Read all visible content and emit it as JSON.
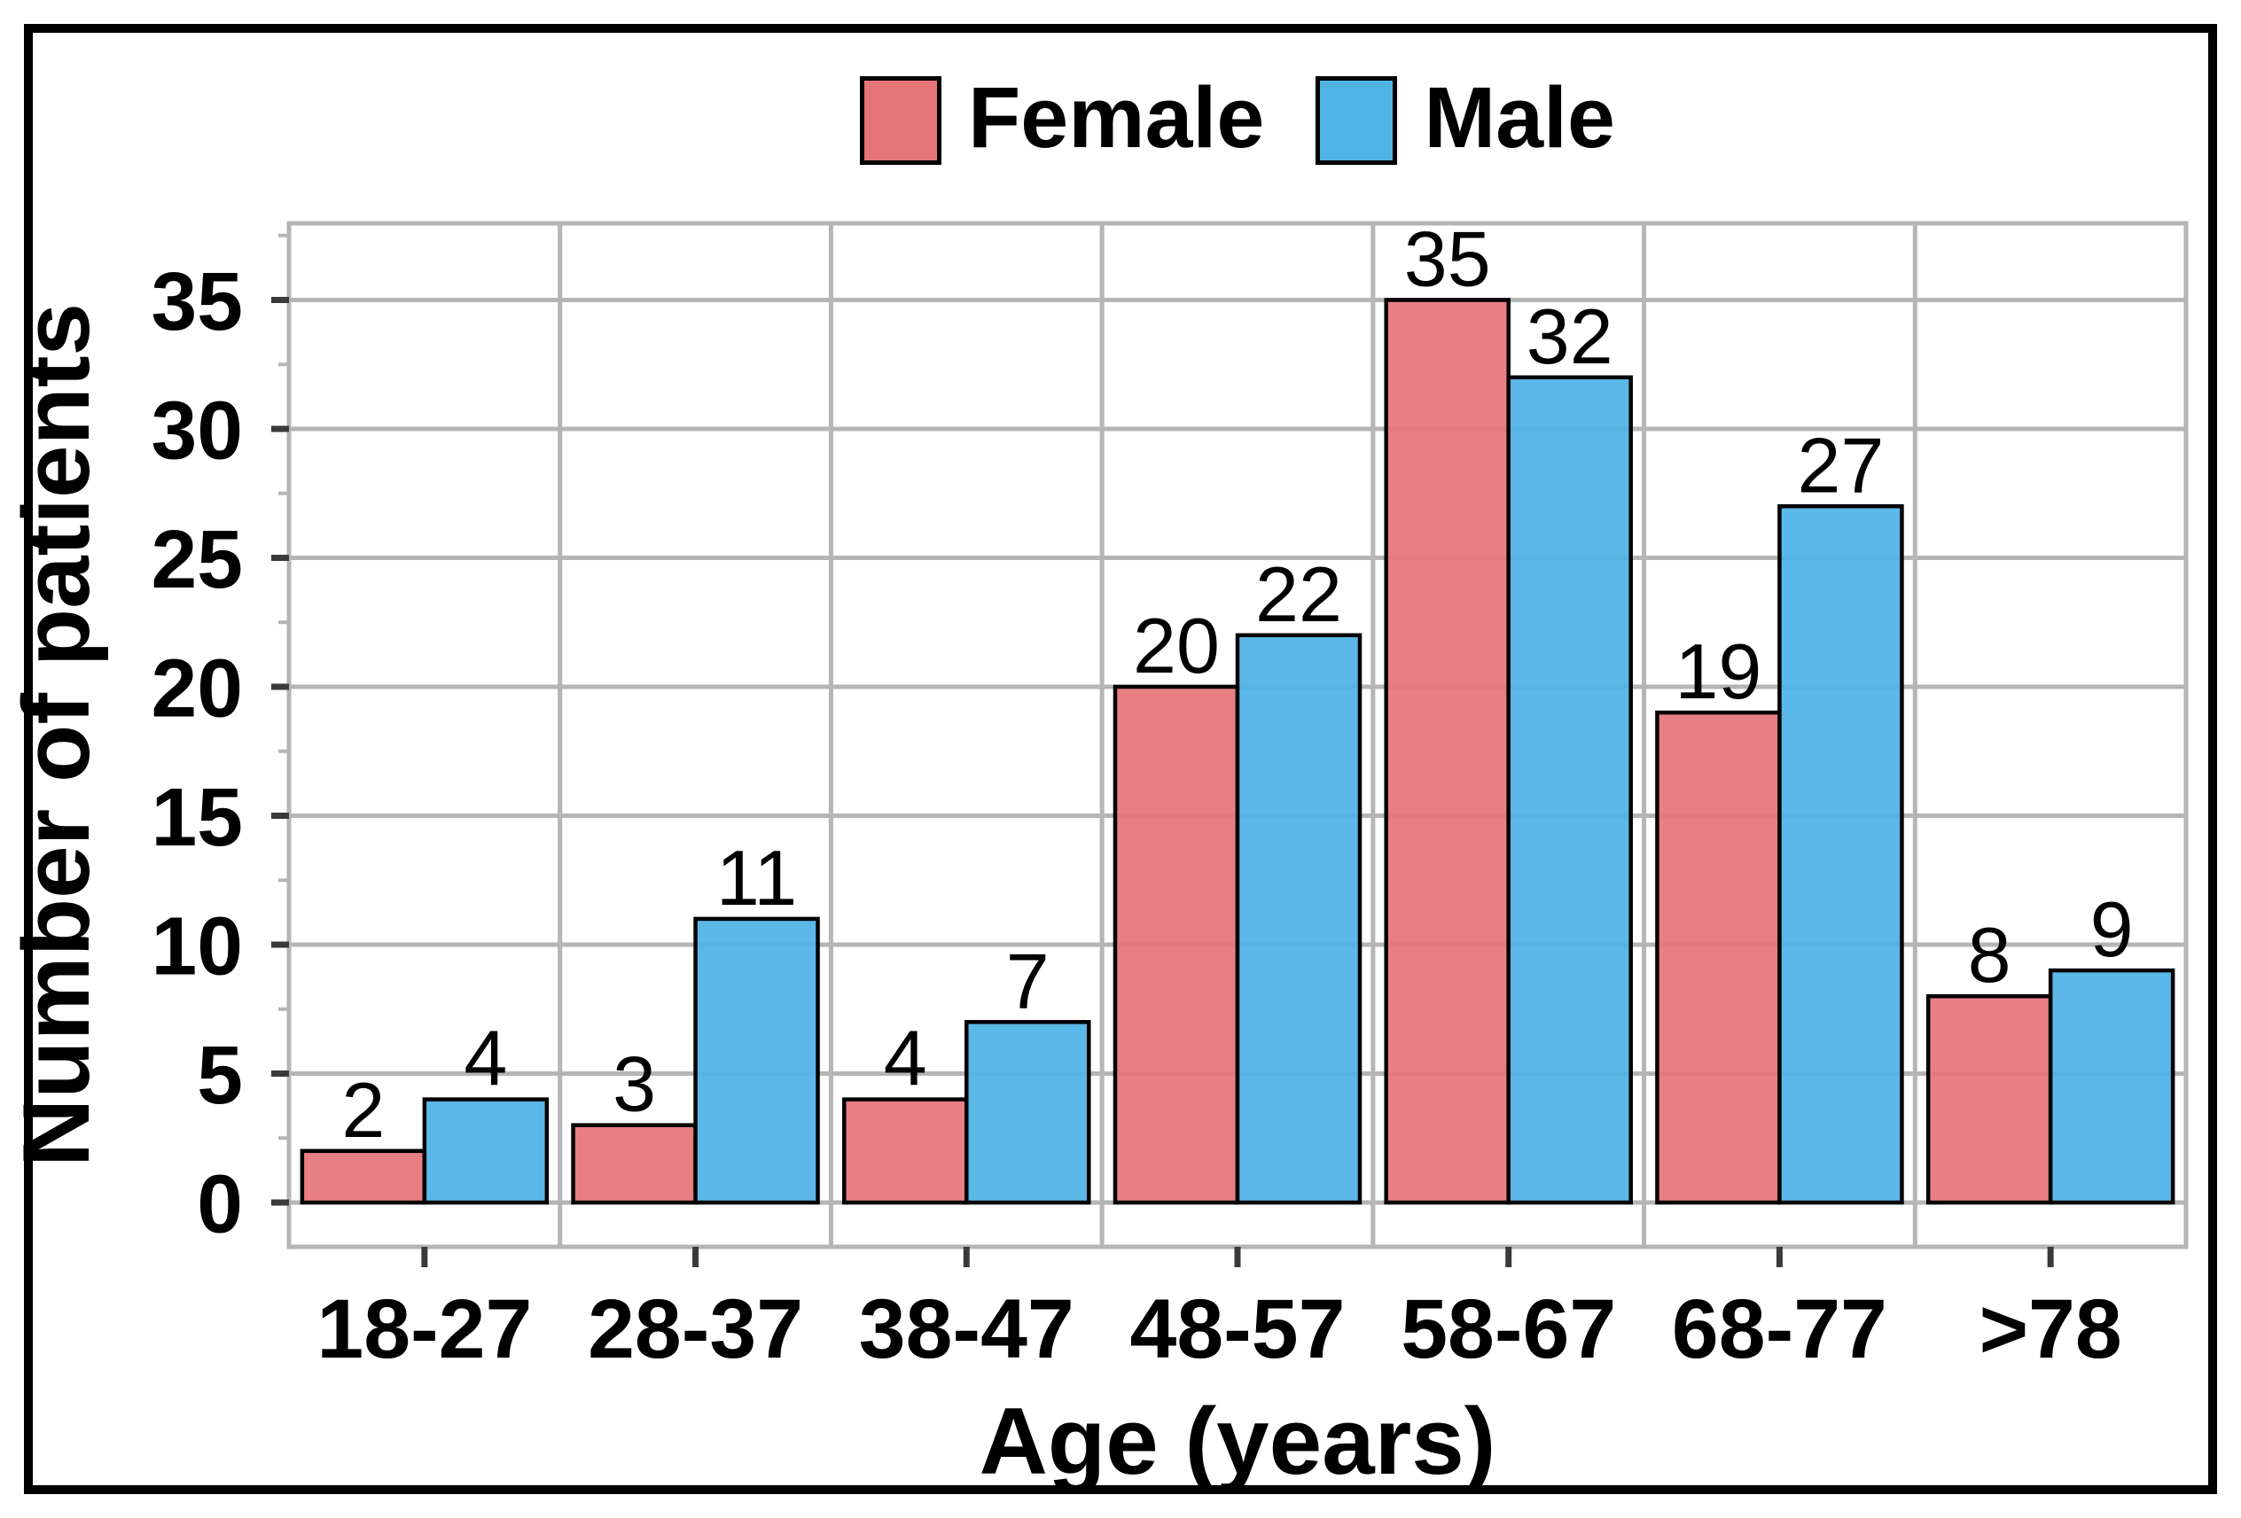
{
  "chart_data": {
    "type": "bar",
    "title": "",
    "categories": [
      "18-27",
      "28-37",
      "38-47",
      "48-57",
      "58-67",
      "68-77",
      ">78"
    ],
    "series": [
      {
        "name": "Female",
        "color": "#E67578",
        "values": [
          2,
          3,
          4,
          20,
          35,
          19,
          8
        ]
      },
      {
        "name": "Male",
        "color": "#4FB3E6",
        "values": [
          4,
          11,
          7,
          22,
          32,
          27,
          9
        ]
      }
    ],
    "xlabel": "Age (years)",
    "ylabel": "Number of patients",
    "yticks": [
      0,
      5,
      10,
      15,
      20,
      25,
      30,
      35
    ],
    "ylim": [
      0,
      38
    ],
    "ytick_step": 5,
    "minor_tick_step": 2.5,
    "grid": true,
    "legend_position": "top",
    "bar_value_labels": true,
    "colors": {
      "gridline": "#B5B5B5",
      "panel_border": "#B5B5B5",
      "tick_major": "#3A3A3A",
      "tick_minor": "#B5B5B5",
      "bar_outline": "#000000",
      "frame": "#000000",
      "text": "#000000",
      "background": "#FFFFFF"
    }
  }
}
